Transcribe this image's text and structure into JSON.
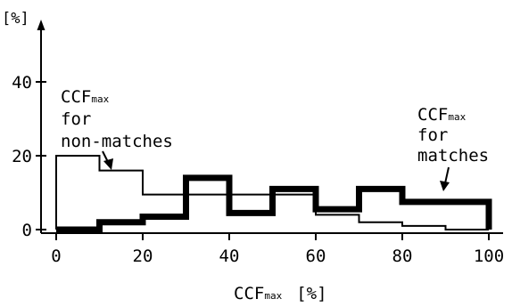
{
  "chart_data": {
    "type": "line",
    "title": "",
    "xlabel": {
      "main": "CCF",
      "sub": "max",
      "unit": "[%]"
    },
    "ylabel": "[%]",
    "xlim": [
      0,
      100
    ],
    "ylim": [
      0,
      47
    ],
    "x_ticks": [
      0,
      20,
      40,
      60,
      80,
      100
    ],
    "y_ticks": [
      0,
      20,
      40
    ],
    "grid": false,
    "series": [
      {
        "name": "CCFmax for non-matches",
        "style": "thin step",
        "color": "#000000",
        "bins": [
          0,
          10,
          20,
          30,
          40,
          50,
          60,
          70,
          80,
          90
        ],
        "values": [
          20,
          16,
          9.5,
          9.5,
          9.5,
          9.5,
          4,
          2,
          1,
          0
        ]
      },
      {
        "name": "CCFmax for matches",
        "style": "thick step",
        "color": "#000000",
        "bins": [
          0,
          10,
          20,
          30,
          40,
          50,
          60,
          70,
          80,
          90
        ],
        "values": [
          0,
          2,
          3.5,
          14,
          4.5,
          11,
          5.5,
          11,
          7.5,
          7.5
        ]
      }
    ],
    "annotations": [
      {
        "lines": [
          "CCF",
          "for",
          "non-matches"
        ],
        "sub": "max",
        "target": "non-matches"
      },
      {
        "lines": [
          "CCF",
          "for",
          "matches"
        ],
        "sub": "max",
        "target": "matches"
      }
    ]
  }
}
